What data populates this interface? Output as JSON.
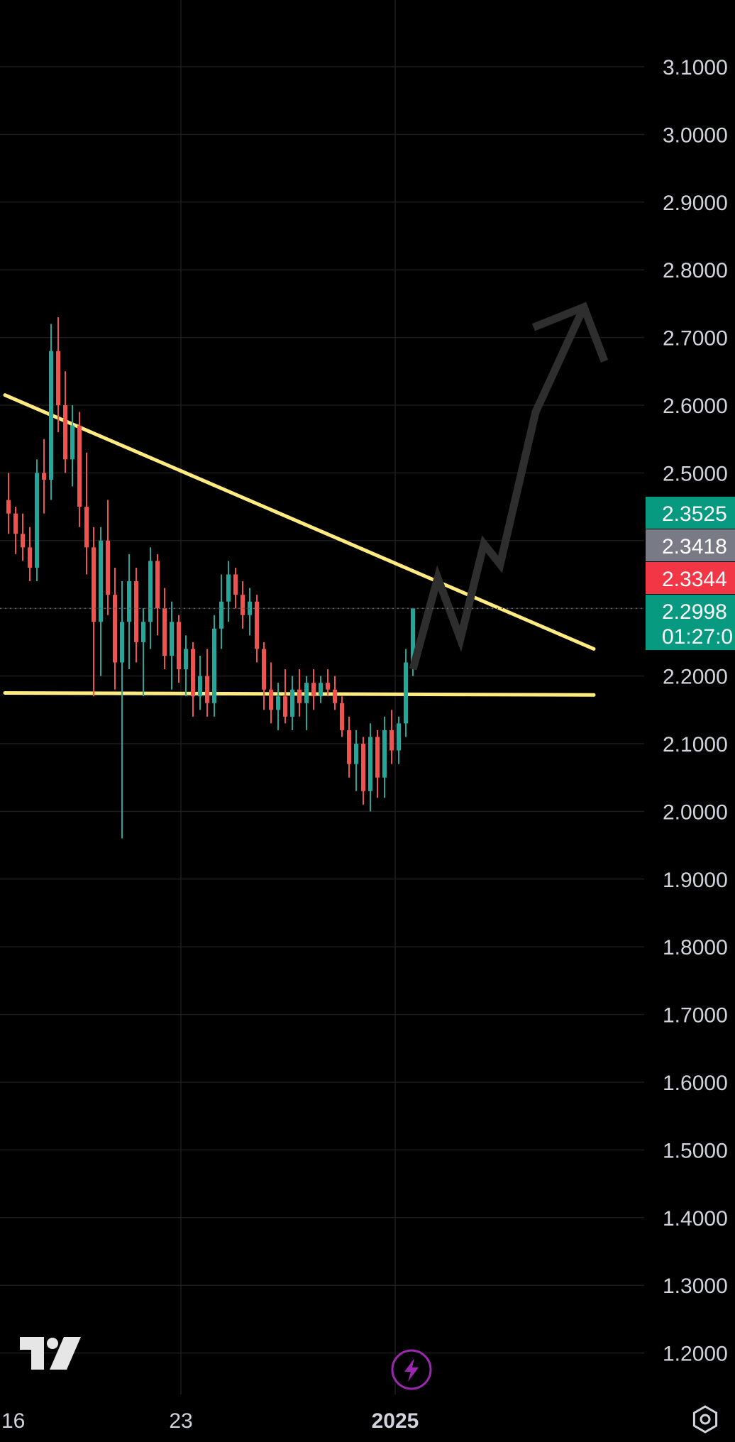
{
  "chart_data": {
    "type": "candlestick",
    "y_ticks": [
      "3.1000",
      "3.0000",
      "2.9000",
      "2.8000",
      "2.7000",
      "2.6000",
      "2.5000",
      "2.4000",
      "2.3000",
      "2.2000",
      "2.1000",
      "2.0000",
      "1.9000",
      "1.8000",
      "1.7000",
      "1.6000",
      "1.5000",
      "1.4000",
      "1.3000",
      "1.2000"
    ],
    "ylim": [
      1.15,
      3.13
    ],
    "x_ticks": [
      {
        "label": "16",
        "bold": false
      },
      {
        "label": "23",
        "bold": false
      },
      {
        "label": "2025",
        "bold": true
      }
    ],
    "price_badges": [
      {
        "value": "2.3525",
        "color": "#089981",
        "price": 2.3525
      },
      {
        "value": "2.3418",
        "color": "#787b86",
        "price": 2.3418
      },
      {
        "value": "2.3344",
        "color": "#f23645",
        "price": 2.3344
      },
      {
        "value": "2.2998",
        "sub": "01:27:0",
        "color": "#089981",
        "price": 2.2998
      }
    ],
    "last_price": 2.2998,
    "colors": {
      "up": "#26a69a",
      "down": "#ef5350",
      "trendline": "#ffeb80",
      "projection": "#2e2e2e",
      "grid": "#1c1c1c",
      "crosshair_line": "#5d606b"
    },
    "trendlines": [
      {
        "name": "descending-resistance",
        "from": {
          "t": -0.5,
          "price": 2.615
        },
        "to": {
          "t": 82.5,
          "price": 2.24
        }
      },
      {
        "name": "horizontal-support",
        "from": {
          "t": -0.5,
          "price": 2.175
        },
        "to": {
          "t": 82.5,
          "price": 2.172
        }
      }
    ],
    "projection_path": [
      {
        "t": 57,
        "price": 2.21
      },
      {
        "t": 60.5,
        "price": 2.345
      },
      {
        "t": 63.7,
        "price": 2.255
      },
      {
        "t": 67,
        "price": 2.395
      },
      {
        "t": 69.3,
        "price": 2.365
      },
      {
        "t": 74.3,
        "price": 2.59
      },
      {
        "t": 81.1,
        "price": 2.745
      }
    ],
    "projection_arrowhead": [
      {
        "t": 74,
        "price": 2.715
      },
      {
        "t": 81.1,
        "price": 2.745
      },
      {
        "t": 84,
        "price": 2.665
      }
    ],
    "candles": [
      [
        2.46,
        2.5,
        2.41,
        2.44
      ],
      [
        2.44,
        2.45,
        2.38,
        2.41
      ],
      [
        2.41,
        2.44,
        2.37,
        2.39
      ],
      [
        2.39,
        2.42,
        2.34,
        2.36
      ],
      [
        2.36,
        2.52,
        2.34,
        2.5
      ],
      [
        2.5,
        2.55,
        2.44,
        2.49
      ],
      [
        2.49,
        2.72,
        2.46,
        2.68
      ],
      [
        2.68,
        2.73,
        2.56,
        2.6
      ],
      [
        2.6,
        2.65,
        2.5,
        2.52
      ],
      [
        2.52,
        2.6,
        2.48,
        2.57
      ],
      [
        2.57,
        2.59,
        2.42,
        2.45
      ],
      [
        2.45,
        2.53,
        2.35,
        2.39
      ],
      [
        2.39,
        2.42,
        2.17,
        2.28
      ],
      [
        2.28,
        2.42,
        2.2,
        2.4
      ],
      [
        2.4,
        2.46,
        2.29,
        2.32
      ],
      [
        2.32,
        2.36,
        2.18,
        2.22
      ],
      [
        2.22,
        2.34,
        1.96,
        2.28
      ],
      [
        2.28,
        2.38,
        2.21,
        2.34
      ],
      [
        2.34,
        2.36,
        2.22,
        2.25
      ],
      [
        2.25,
        2.3,
        2.17,
        2.28
      ],
      [
        2.28,
        2.39,
        2.24,
        2.37
      ],
      [
        2.37,
        2.38,
        2.26,
        2.3
      ],
      [
        2.3,
        2.33,
        2.21,
        2.23
      ],
      [
        2.23,
        2.31,
        2.18,
        2.28
      ],
      [
        2.28,
        2.29,
        2.19,
        2.21
      ],
      [
        2.21,
        2.26,
        2.17,
        2.24
      ],
      [
        2.24,
        2.25,
        2.14,
        2.17
      ],
      [
        2.17,
        2.23,
        2.15,
        2.2
      ],
      [
        2.2,
        2.24,
        2.14,
        2.16
      ],
      [
        2.16,
        2.29,
        2.14,
        2.27
      ],
      [
        2.27,
        2.35,
        2.24,
        2.31
      ],
      [
        2.31,
        2.37,
        2.28,
        2.35
      ],
      [
        2.35,
        2.36,
        2.3,
        2.32
      ],
      [
        2.32,
        2.34,
        2.27,
        2.29
      ],
      [
        2.29,
        2.33,
        2.26,
        2.31
      ],
      [
        2.31,
        2.32,
        2.22,
        2.24
      ],
      [
        2.24,
        2.25,
        2.15,
        2.18
      ],
      [
        2.18,
        2.22,
        2.13,
        2.15
      ],
      [
        2.15,
        2.19,
        2.12,
        2.17
      ],
      [
        2.17,
        2.21,
        2.13,
        2.14
      ],
      [
        2.14,
        2.2,
        2.12,
        2.18
      ],
      [
        2.18,
        2.21,
        2.14,
        2.16
      ],
      [
        2.16,
        2.2,
        2.12,
        2.19
      ],
      [
        2.19,
        2.21,
        2.15,
        2.17
      ],
      [
        2.17,
        2.2,
        2.16,
        2.19
      ],
      [
        2.19,
        2.21,
        2.17,
        2.18
      ],
      [
        2.18,
        2.2,
        2.15,
        2.16
      ],
      [
        2.16,
        2.17,
        2.11,
        2.12
      ],
      [
        2.12,
        2.14,
        2.05,
        2.07
      ],
      [
        2.07,
        2.12,
        2.03,
        2.1
      ],
      [
        2.1,
        2.11,
        2.01,
        2.03
      ],
      [
        2.03,
        2.13,
        2.0,
        2.11
      ],
      [
        2.11,
        2.12,
        2.02,
        2.05
      ],
      [
        2.05,
        2.14,
        2.02,
        2.12
      ],
      [
        2.12,
        2.15,
        2.07,
        2.09
      ],
      [
        2.09,
        2.14,
        2.07,
        2.13
      ],
      [
        2.13,
        2.24,
        2.11,
        2.22
      ],
      [
        2.22,
        2.3,
        2.2,
        2.2998
      ]
    ]
  },
  "logo": {
    "name": "tradingview-logo"
  },
  "flash_button": {
    "icon": "lightning-icon",
    "color": "#9c27b0"
  },
  "settings_button": {
    "icon": "gear-icon"
  }
}
